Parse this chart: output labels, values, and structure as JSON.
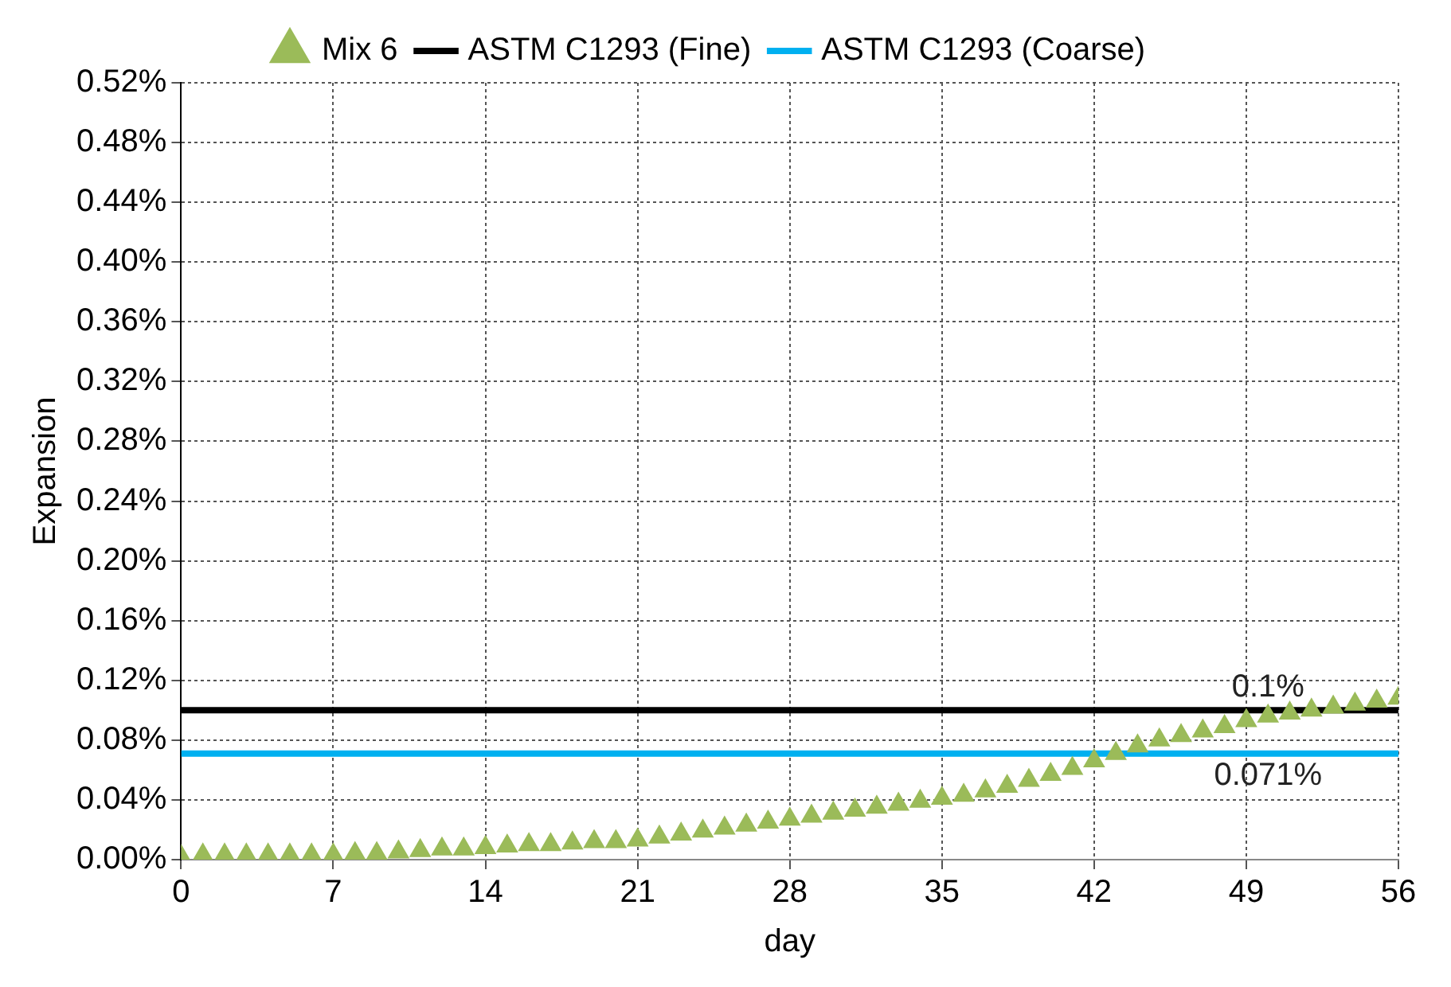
{
  "chart_data": {
    "type": "scatter",
    "xlabel": "day",
    "ylabel": "Expansion",
    "legend": "top",
    "grid": true,
    "xlim": [
      0,
      56
    ],
    "xticks": [
      0,
      7,
      14,
      21,
      28,
      35,
      42,
      49,
      56
    ],
    "ylim": [
      0,
      0.52
    ],
    "yticks": [
      {
        "value": 0,
        "label": "0.00%"
      },
      {
        "value": 0.04,
        "label": "0.04%"
      },
      {
        "value": 0.08,
        "label": "0.08%"
      },
      {
        "value": 0.12,
        "label": "0.12%"
      },
      {
        "value": 0.16,
        "label": "0.16%"
      },
      {
        "value": 0.2,
        "label": "0.20%"
      },
      {
        "value": 0.24,
        "label": "0.24%"
      },
      {
        "value": 0.28,
        "label": "0.28%"
      },
      {
        "value": 0.32,
        "label": "0.32%"
      },
      {
        "value": 0.36,
        "label": "0.36%"
      },
      {
        "value": 0.4,
        "label": "0.40%"
      },
      {
        "value": 0.44,
        "label": "0.44%"
      },
      {
        "value": 0.48,
        "label": "0.48%"
      },
      {
        "value": 0.52,
        "label": "0.52%"
      }
    ],
    "series": [
      {
        "name": "Mix 6",
        "marker": "triangle",
        "color": "#9bbb59",
        "x": [
          0,
          1,
          2,
          3,
          4,
          5,
          6,
          7,
          8,
          9,
          10,
          11,
          12,
          13,
          14,
          15,
          16,
          17,
          18,
          19,
          20,
          21,
          22,
          23,
          24,
          25,
          26,
          27,
          28,
          29,
          30,
          31,
          32,
          33,
          34,
          35,
          36,
          37,
          38,
          39,
          40,
          41,
          42,
          43,
          44,
          45,
          46,
          47,
          48,
          49,
          50,
          51,
          52,
          53,
          54,
          55,
          56
        ],
        "values": [
          0.002,
          0.003,
          0.003,
          0.003,
          0.003,
          0.003,
          0.003,
          0.003,
          0.004,
          0.004,
          0.005,
          0.006,
          0.007,
          0.007,
          0.008,
          0.009,
          0.01,
          0.01,
          0.011,
          0.012,
          0.012,
          0.013,
          0.015,
          0.017,
          0.019,
          0.021,
          0.023,
          0.025,
          0.027,
          0.029,
          0.031,
          0.033,
          0.035,
          0.037,
          0.039,
          0.041,
          0.043,
          0.046,
          0.049,
          0.053,
          0.057,
          0.061,
          0.066,
          0.071,
          0.076,
          0.08,
          0.083,
          0.086,
          0.089,
          0.093,
          0.096,
          0.098,
          0.1,
          0.102,
          0.104,
          0.106,
          0.108
        ]
      },
      {
        "name": "ASTM C1293 (Fine)",
        "type": "line",
        "marker": "none",
        "color": "#000000",
        "x": [
          0,
          56
        ],
        "values": [
          0.1,
          0.1
        ]
      },
      {
        "name": "ASTM C1293 (Coarse)",
        "type": "line",
        "marker": "none",
        "color": "#00b0f0",
        "x": [
          0,
          56
        ],
        "values": [
          0.071,
          0.071
        ]
      }
    ],
    "annotations": [
      {
        "text": "0.1%",
        "x": 50,
        "y": 0.1
      },
      {
        "text": "0.071%",
        "x": 50,
        "y": 0.071
      }
    ]
  }
}
